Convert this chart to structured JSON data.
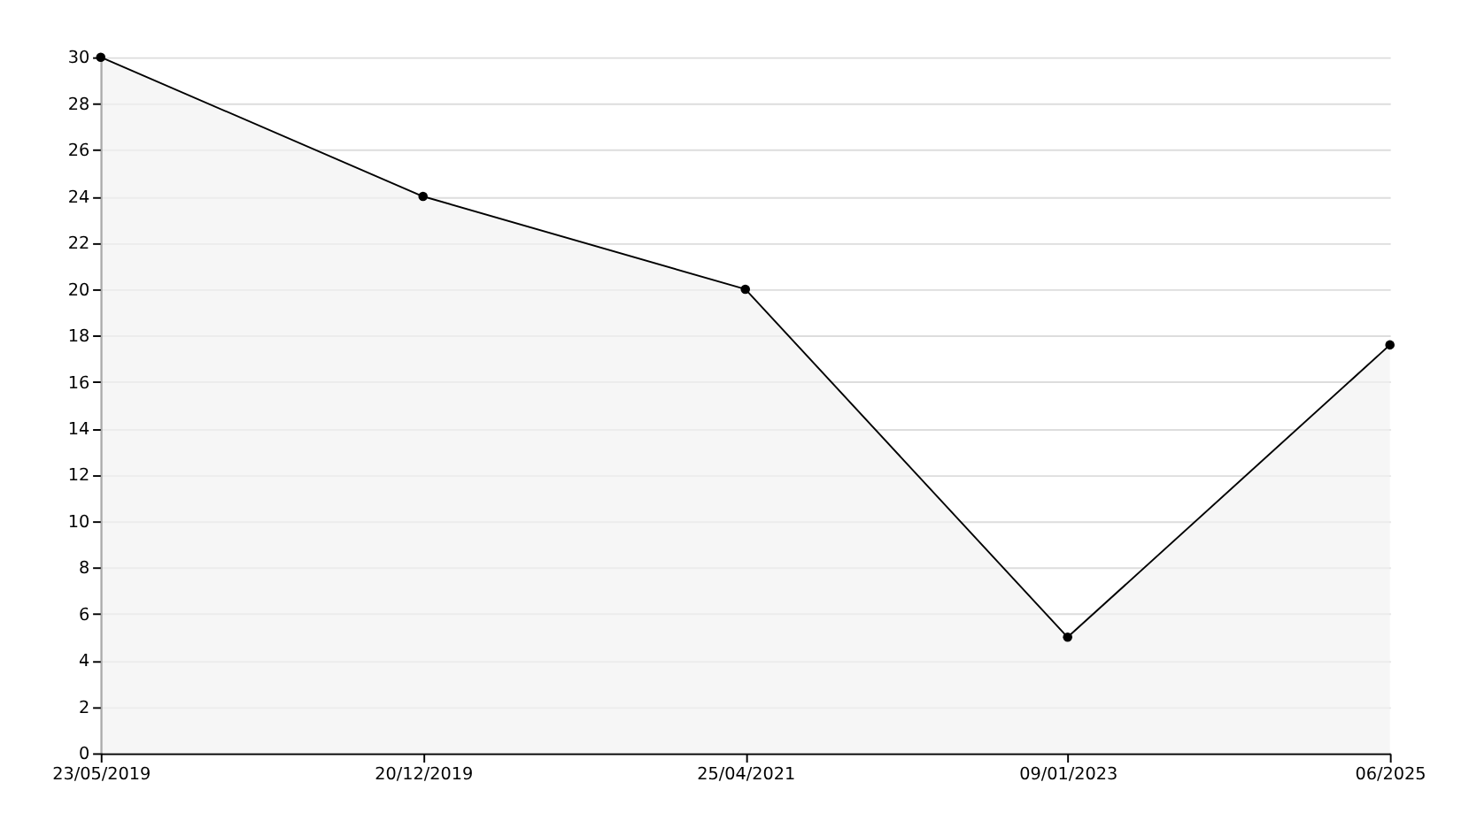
{
  "chart_data": {
    "type": "area",
    "categories": [
      "23/05/2019",
      "20/12/2019",
      "25/04/2021",
      "09/01/2023",
      "06/2025"
    ],
    "series": [
      {
        "color": "#f2f2f2",
        "values": [
          30,
          24,
          20,
          5,
          17.6
        ]
      }
    ],
    "ylim": [
      0,
      30
    ],
    "yticks": [
      0,
      2,
      4,
      6,
      8,
      10,
      12,
      14,
      16,
      18,
      20,
      22,
      24,
      26,
      28,
      30
    ],
    "grid": "y",
    "marker": "circle",
    "line_style": "solid"
  }
}
